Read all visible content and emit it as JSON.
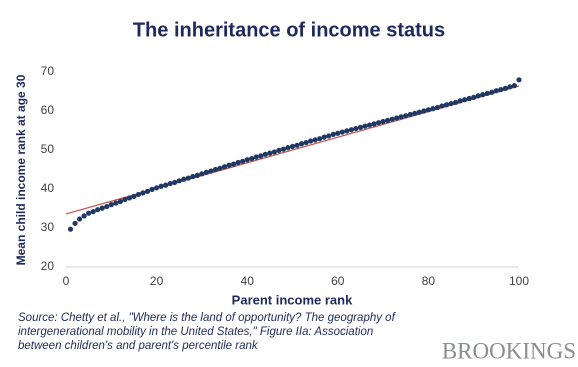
{
  "chart_data": {
    "type": "scatter",
    "title": "The inheritance of income status",
    "x_label": "Parent income rank",
    "y_label": "Mean child income rank at age 30",
    "x": [
      1,
      2,
      3,
      4,
      5,
      6,
      7,
      8,
      9,
      10,
      11,
      12,
      13,
      14,
      15,
      16,
      17,
      18,
      19,
      20,
      21,
      22,
      23,
      24,
      25,
      26,
      27,
      28,
      29,
      30,
      31,
      32,
      33,
      34,
      35,
      36,
      37,
      38,
      39,
      40,
      41,
      42,
      43,
      44,
      45,
      46,
      47,
      48,
      49,
      50,
      51,
      52,
      53,
      54,
      55,
      56,
      57,
      58,
      59,
      60,
      61,
      62,
      63,
      64,
      65,
      66,
      67,
      68,
      69,
      70,
      71,
      72,
      73,
      74,
      75,
      76,
      77,
      78,
      79,
      80,
      81,
      82,
      83,
      84,
      85,
      86,
      87,
      88,
      89,
      90,
      91,
      92,
      93,
      94,
      95,
      96,
      97,
      98,
      99,
      100
    ],
    "values": [
      29.7,
      31.2,
      32.3,
      33.1,
      33.8,
      34.2,
      34.7,
      35.1,
      35.5,
      36.0,
      36.4,
      36.8,
      37.3,
      37.7,
      38.1,
      38.6,
      39.0,
      39.4,
      39.9,
      40.3,
      40.7,
      41.0,
      41.4,
      41.7,
      42.1,
      42.5,
      42.8,
      43.2,
      43.5,
      43.9,
      44.3,
      44.6,
      45.0,
      45.3,
      45.7,
      46.1,
      46.4,
      46.8,
      47.1,
      47.5,
      47.8,
      48.2,
      48.5,
      48.9,
      49.2,
      49.5,
      49.9,
      50.2,
      50.6,
      50.9,
      51.2,
      51.6,
      51.9,
      52.3,
      52.6,
      52.9,
      53.3,
      53.6,
      54.0,
      54.3,
      54.6,
      54.9,
      55.2,
      55.5,
      55.8,
      56.1,
      56.4,
      56.7,
      57.0,
      57.3,
      57.6,
      57.9,
      58.2,
      58.5,
      58.8,
      59.1,
      59.4,
      59.7,
      60.0,
      60.3,
      60.6,
      60.9,
      61.3,
      61.6,
      61.9,
      62.2,
      62.6,
      62.9,
      63.2,
      63.5,
      63.9,
      64.2,
      64.5,
      64.8,
      65.2,
      65.5,
      65.8,
      66.2,
      66.5,
      68.0
    ],
    "color": "#1f3864",
    "trend_line": {
      "x": [
        0,
        100
      ],
      "values": [
        33.6,
        66.4
      ],
      "color": "#c0504d"
    },
    "xlim": [
      0,
      100
    ],
    "xticks": [
      0,
      20,
      40,
      60,
      80,
      100
    ],
    "ylim": [
      20,
      70
    ],
    "yticks": [
      20,
      30,
      40,
      50,
      60,
      70
    ],
    "source": [
      "Source: Chetty et al., \"Where is the land of opportunity? The geography of",
      "intergenerational mobility in the United States,\"  Figure IIa: Association",
      "between children's and parent's percentile rank"
    ],
    "logo": "BROOKINGS"
  }
}
